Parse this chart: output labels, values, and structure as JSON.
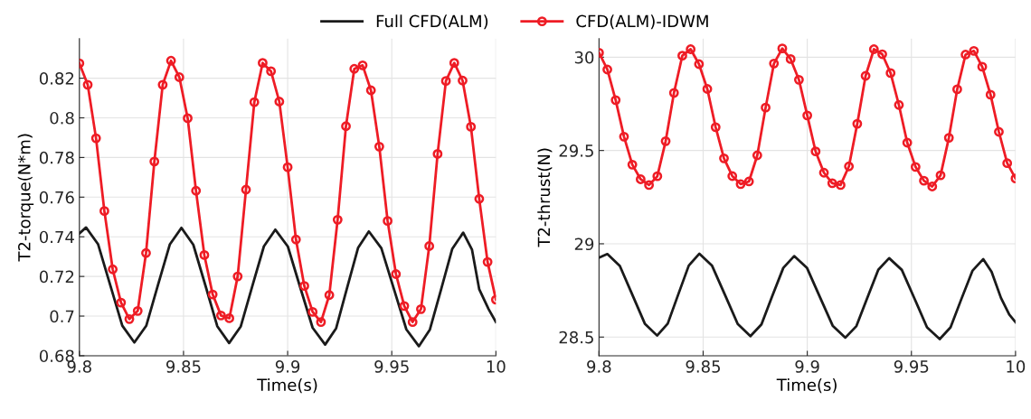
{
  "chart_data": [
    {
      "type": "line",
      "xlabel": "Time(s)",
      "ylabel": "T2-torque(N*m)",
      "xlim": [
        9.8,
        10
      ],
      "xticks": [
        9.8,
        9.85,
        9.9,
        9.95,
        10
      ],
      "ylim": [
        0.68,
        0.84
      ],
      "yticks": [
        0.68,
        0.7,
        0.72,
        0.74,
        0.76,
        0.78,
        0.8,
        0.82
      ],
      "grid": true,
      "legend": "top",
      "line_style": "solid",
      "series": [
        {
          "name": "Full CFD(ALM)",
          "color": "#1a1a1a",
          "marker": "none",
          "x": [
            9.8,
            9.8032,
            9.809,
            9.8148,
            9.8206,
            9.8264,
            9.8321,
            9.8377,
            9.8434,
            9.849,
            9.8547,
            9.8605,
            9.8662,
            9.8719,
            9.8775,
            9.883,
            9.8886,
            9.8941,
            9.9001,
            9.906,
            9.912,
            9.918,
            9.9233,
            9.9285,
            9.9338,
            9.939,
            9.945,
            9.951,
            9.957,
            9.963,
            9.9683,
            9.9737,
            9.979,
            9.9843,
            9.9885,
            9.992,
            9.9965,
            10.0
          ],
          "values": [
            0.7417,
            0.7447,
            0.7362,
            0.7157,
            0.6952,
            0.6867,
            0.6951,
            0.7156,
            0.7361,
            0.7445,
            0.736,
            0.7155,
            0.6949,
            0.6864,
            0.6948,
            0.715,
            0.7352,
            0.7436,
            0.7351,
            0.7146,
            0.6941,
            0.6856,
            0.6939,
            0.7141,
            0.7344,
            0.7427,
            0.7342,
            0.7137,
            0.6933,
            0.6848,
            0.6932,
            0.7135,
            0.7338,
            0.7421,
            0.7336,
            0.7135,
            0.7035,
            0.697
          ]
        },
        {
          "name": "CFD(ALM)-IDWM",
          "color": "#ee1c25",
          "marker": "circle",
          "x": [
            9.8,
            9.804,
            9.808,
            9.812,
            9.816,
            9.82,
            9.824,
            9.828,
            9.832,
            9.836,
            9.84,
            9.844,
            9.848,
            9.852,
            9.856,
            9.86,
            9.864,
            9.868,
            9.872,
            9.876,
            9.88,
            9.884,
            9.888,
            9.892,
            9.896,
            9.9,
            9.904,
            9.908,
            9.912,
            9.916,
            9.92,
            9.924,
            9.928,
            9.932,
            9.936,
            9.94,
            9.944,
            9.948,
            9.952,
            9.956,
            9.96,
            9.964,
            9.968,
            9.972,
            9.976,
            9.98,
            9.984,
            9.988,
            9.992,
            9.996,
            10.0
          ],
          "values": [
            0.8275,
            0.8167,
            0.7897,
            0.753,
            0.7236,
            0.7068,
            0.6985,
            0.7026,
            0.7318,
            0.778,
            0.8167,
            0.8288,
            0.8205,
            0.7998,
            0.7632,
            0.7308,
            0.7109,
            0.7003,
            0.6989,
            0.72,
            0.7638,
            0.8079,
            0.8277,
            0.8235,
            0.8082,
            0.7751,
            0.7386,
            0.7152,
            0.7021,
            0.697,
            0.7106,
            0.7486,
            0.7958,
            0.8247,
            0.8265,
            0.8139,
            0.7855,
            0.748,
            0.7212,
            0.7051,
            0.697,
            0.7035,
            0.7353,
            0.7818,
            0.8186,
            0.8277,
            0.8188,
            0.7955,
            0.7591,
            0.7273,
            0.7083
          ]
        }
      ]
    },
    {
      "type": "line",
      "xlabel": "Time(s)",
      "ylabel": "T2-thrust(N)",
      "xlim": [
        9.8,
        10
      ],
      "xticks": [
        9.8,
        9.85,
        9.9,
        9.95,
        10
      ],
      "ylim": [
        28.4,
        30.1
      ],
      "yticks": [
        28.5,
        29,
        29.5,
        30
      ],
      "grid": true,
      "line_style": "solid",
      "series": [
        {
          "color": "#1a1a1a",
          "marker": "none",
          "x": [
            9.8,
            9.804,
            9.81,
            9.816,
            9.822,
            9.8279,
            9.833,
            9.838,
            9.8431,
            9.8482,
            9.8543,
            9.8605,
            9.8666,
            9.8727,
            9.878,
            9.8832,
            9.8885,
            9.8937,
            9.8999,
            9.906,
            9.9122,
            9.9183,
            9.9236,
            9.9288,
            9.9341,
            9.9393,
            9.9454,
            9.9515,
            9.9575,
            9.9636,
            9.9688,
            9.974,
            9.9793,
            9.9845,
            9.9885,
            9.993,
            9.997,
            10.0
          ],
          "values": [
            28.926,
            28.945,
            28.881,
            28.727,
            28.572,
            28.508,
            28.572,
            28.727,
            28.883,
            28.947,
            28.882,
            28.726,
            28.57,
            28.505,
            28.568,
            28.72,
            28.871,
            28.934,
            28.87,
            28.716,
            28.561,
            28.497,
            28.559,
            28.71,
            28.861,
            28.923,
            28.86,
            28.706,
            28.552,
            28.489,
            28.552,
            28.704,
            28.855,
            28.918,
            28.85,
            28.71,
            28.62,
            28.58
          ]
        },
        {
          "color": "#ee1c25",
          "marker": "circle",
          "x": [
            9.8,
            9.804,
            9.808,
            9.812,
            9.816,
            9.82,
            9.824,
            9.828,
            9.832,
            9.836,
            9.84,
            9.844,
            9.848,
            9.852,
            9.856,
            9.86,
            9.864,
            9.868,
            9.872,
            9.876,
            9.88,
            9.884,
            9.888,
            9.892,
            9.896,
            9.9,
            9.904,
            9.908,
            9.912,
            9.916,
            9.92,
            9.924,
            9.928,
            9.932,
            9.936,
            9.94,
            9.944,
            9.948,
            9.952,
            9.956,
            9.96,
            9.964,
            9.968,
            9.972,
            9.976,
            9.98,
            9.984,
            9.988,
            9.992,
            9.996,
            10.0
          ],
          "values": [
            30.024,
            29.934,
            29.77,
            29.574,
            29.424,
            29.346,
            29.315,
            29.362,
            29.55,
            29.809,
            30.008,
            30.043,
            29.963,
            29.83,
            29.625,
            29.458,
            29.363,
            29.32,
            29.334,
            29.474,
            29.73,
            29.966,
            30.047,
            29.99,
            29.879,
            29.688,
            29.495,
            29.381,
            29.325,
            29.315,
            29.415,
            29.643,
            29.9,
            30.043,
            30.016,
            29.915,
            29.744,
            29.542,
            29.412,
            29.338,
            29.307,
            29.367,
            29.568,
            29.828,
            30.014,
            30.034,
            29.949,
            29.799,
            29.6,
            29.432,
            29.35
          ]
        }
      ]
    }
  ]
}
